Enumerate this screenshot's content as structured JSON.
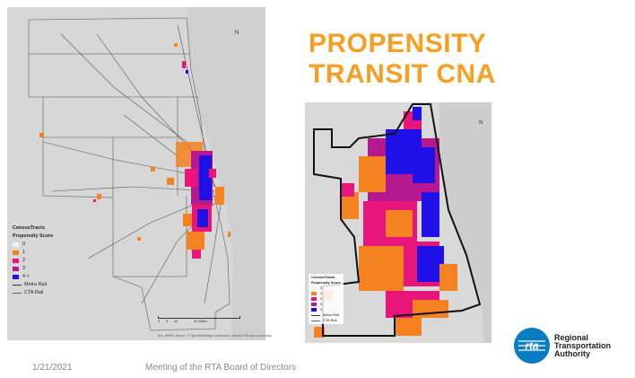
{
  "title": {
    "line1": "PROPENSITY",
    "line2": "TRANSIT CNA"
  },
  "legend_left": {
    "heading": "CensusTracts",
    "subheading": "Propensity Score",
    "items": [
      {
        "label": "0",
        "color": "#f2f2f2"
      },
      {
        "label": "1",
        "color": "#f58220"
      },
      {
        "label": "2",
        "color": "#e8157a"
      },
      {
        "label": "3",
        "color": "#b6188f"
      },
      {
        "label": "4 +",
        "color": "#1f10e8"
      }
    ],
    "lines": [
      {
        "label": "Metra Rail"
      },
      {
        "label": "CTA Rail"
      }
    ]
  },
  "legend_right": {
    "heading": "CensusTracts",
    "subheading": "Propensity Score",
    "items": [
      {
        "label": "0",
        "color": "#f2f2f2"
      },
      {
        "label": "1",
        "color": "#f58220"
      },
      {
        "label": "2",
        "color": "#e8157a"
      },
      {
        "label": "3",
        "color": "#b6188f"
      },
      {
        "label": "4",
        "color": "#1f10e8"
      }
    ],
    "lines": [
      {
        "label": "Metra Rail"
      },
      {
        "label": "CTA Rail"
      }
    ]
  },
  "north_label": "N",
  "scale_left": {
    "labels": [
      "0",
      "5",
      "10",
      "20 Miles"
    ]
  },
  "attribution": "Esri, HERE, Garmin, © OpenStreetMap contributors, and the GIS user community",
  "footer": {
    "date": "1/21/2021",
    "meeting": "Meeting of the RTA Board of Directors"
  },
  "logo": {
    "line1": "Regional",
    "line2": "Transportation",
    "line3": "Authority",
    "mark_text": "rta",
    "color": "#0a7cc2"
  }
}
